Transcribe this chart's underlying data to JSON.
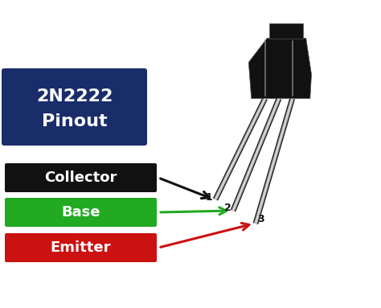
{
  "bg_color": "#ffffff",
  "title_box_color": "#1a2d6b",
  "title_text_line1": "2N2222",
  "title_text_line2": "Pinout",
  "title_text_color": "#ffffff",
  "labels": [
    "Collector",
    "Base",
    "Emitter"
  ],
  "label_colors": [
    "#111111",
    "#22aa22",
    "#cc1111"
  ],
  "label_text_color": "#ffffff",
  "arrow_colors": [
    "#111111",
    "#22aa22",
    "#cc1111"
  ],
  "pin_numbers": [
    "1",
    "2",
    "3"
  ],
  "transistor_body_color": "#111111",
  "transistor_groove_color": "#888888"
}
